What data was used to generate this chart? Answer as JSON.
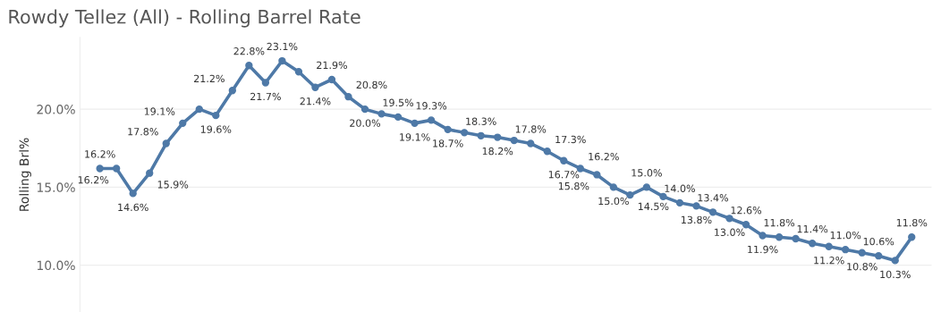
{
  "chart_data": {
    "type": "line",
    "title": "Rowdy Tellez (All) - Rolling Barrel Rate",
    "ylabel": "Rolling Brl%",
    "categories": [
      null,
      null,
      null,
      null,
      null,
      null,
      null,
      null,
      null,
      null,
      null,
      null,
      null,
      null,
      null,
      null,
      null,
      null,
      null,
      null,
      null,
      null,
      null,
      null,
      null,
      null,
      null,
      null,
      null,
      null,
      null,
      null,
      null,
      null,
      null,
      null,
      null,
      null,
      null,
      null,
      null,
      null,
      null,
      null,
      null,
      null,
      null,
      null,
      null,
      null
    ],
    "series": [
      {
        "color": "#4e79a7",
        "values": [
          16.2,
          16.2,
          14.6,
          15.9,
          17.8,
          19.1,
          20.0,
          19.6,
          21.2,
          22.8,
          21.7,
          23.1,
          22.4,
          21.4,
          21.9,
          20.8,
          20.0,
          19.7,
          19.5,
          19.1,
          19.3,
          18.7,
          18.5,
          18.3,
          18.2,
          18.0,
          17.8,
          17.3,
          16.7,
          16.2,
          15.8,
          15.0,
          14.5,
          15.0,
          14.4,
          14.0,
          13.8,
          13.4,
          13.0,
          12.6,
          11.9,
          11.8,
          11.7,
          11.4,
          11.2,
          11.0,
          10.8,
          10.6,
          10.3,
          11.8
        ],
        "value_labels": [
          "16.2%",
          "16.2%",
          "14.6%",
          "15.9%",
          "17.8%",
          "19.1%",
          null,
          "19.6%",
          "21.2%",
          "22.8%",
          "21.7%",
          "23.1%",
          null,
          "21.4%",
          "21.9%",
          "20.8%",
          "20.0%",
          null,
          "19.5%",
          "19.1%",
          "19.3%",
          "18.7%",
          null,
          "18.3%",
          "18.2%",
          null,
          "17.8%",
          "17.3%",
          "16.7%",
          "16.2%",
          "15.8%",
          "15.0%",
          "14.5%",
          "15.0%",
          null,
          "14.0%",
          "13.8%",
          "13.4%",
          "13.0%",
          "12.6%",
          "11.9%",
          "11.8%",
          null,
          "11.4%",
          "11.2%",
          "11.0%",
          "10.8%",
          "10.6%",
          "10.3%",
          "11.8%"
        ]
      }
    ],
    "ylim": [
      7.0,
      24.6
    ],
    "yticks": [
      {
        "value": 10,
        "label": "10.0%"
      },
      {
        "value": 15,
        "label": "15.0%"
      },
      {
        "value": 20,
        "label": "20.0%"
      }
    ],
    "grid": "y",
    "marker": "circle",
    "line_style": "solid"
  }
}
